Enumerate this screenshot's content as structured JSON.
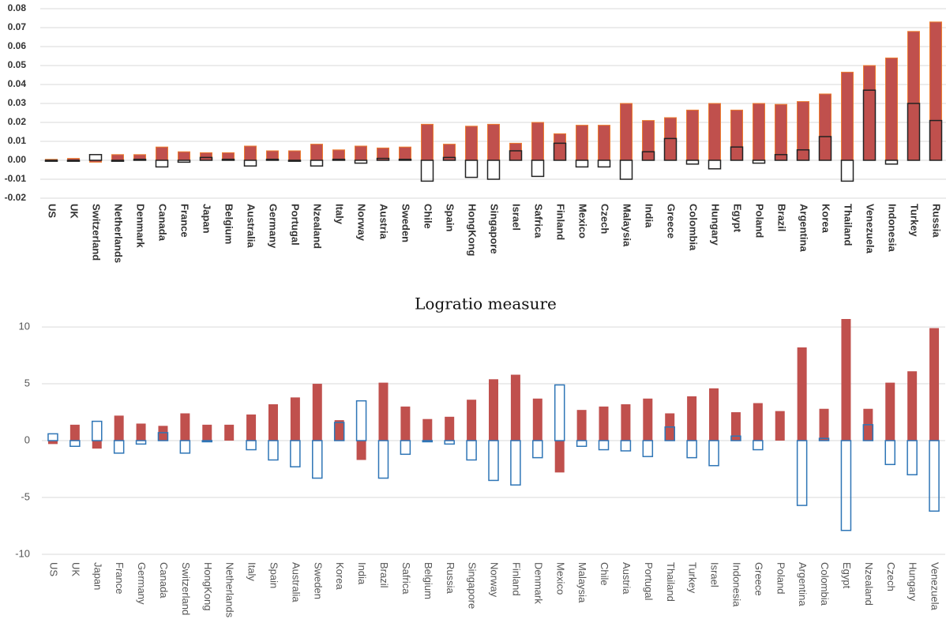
{
  "chart_data": [
    {
      "type": "bar",
      "categories": [
        "US",
        "UK",
        "Switzerland",
        "Netherlands",
        "Denmark",
        "Canada",
        "France",
        "Japan",
        "Belgium",
        "Australia",
        "Germany",
        "Portugal",
        "Nzealand",
        "Italy",
        "Norway",
        "Austria",
        "Sweden",
        "Chile",
        "Spain",
        "HongKong",
        "Singapore",
        "Israel",
        "Safrica",
        "Finland",
        "Mexico",
        "Czech",
        "Malaysia",
        "India",
        "Greece",
        "Colombia",
        "Hungary",
        "Egypt",
        "Poland",
        "Brazil",
        "Argentina",
        "Korea",
        "Thailand",
        "Venezuela",
        "Indonesia",
        "Turkey",
        "Russia"
      ],
      "series": [
        {
          "color": "#c0504d",
          "filled": true,
          "values": [
            0.0005,
            0.001,
            -0.001,
            0.003,
            0.003,
            0.007,
            0.0045,
            0.004,
            0.004,
            0.0075,
            0.005,
            0.005,
            0.0085,
            0.0055,
            0.0075,
            0.0065,
            0.007,
            0.019,
            0.0085,
            0.018,
            0.019,
            0.009,
            0.02,
            0.014,
            0.0185,
            0.0185,
            0.03,
            0.021,
            0.0225,
            0.0265,
            0.03,
            0.0265,
            0.03,
            0.0295,
            0.031,
            0.035,
            0.0465,
            0.05,
            0.054,
            0.068,
            0.073
          ]
        },
        {
          "color": "#222222",
          "filled": false,
          "values": [
            -0.0005,
            -0.0005,
            0.003,
            -0.0005,
            0.0005,
            -0.0035,
            -0.001,
            0.0015,
            0.0005,
            -0.003,
            0.0005,
            -0.0005,
            -0.003,
            0.0005,
            -0.0015,
            0.001,
            0.0005,
            -0.011,
            0.0015,
            -0.009,
            -0.01,
            0.005,
            -0.0085,
            0.009,
            -0.0035,
            -0.0035,
            -0.01,
            0.0045,
            0.0115,
            -0.002,
            -0.0045,
            0.007,
            -0.0015,
            0.003,
            0.0055,
            0.0125,
            -0.011,
            0.037,
            -0.002,
            0.03,
            0.021
          ]
        }
      ],
      "ylim": [
        -0.02,
        0.08
      ],
      "yticks": [
        -0.02,
        -0.01,
        {
          "value": 0,
          "label": "0.00"
        },
        0.01,
        0.02,
        0.03,
        0.04,
        0.05,
        0.06,
        0.07,
        0.08
      ],
      "grid": true
    },
    {
      "type": "bar",
      "title": "Logratio measure",
      "categories": [
        "US",
        "UK",
        "Japan",
        "France",
        "Germany",
        "Canada",
        "Switzerland",
        "HongKong",
        "Netherlands",
        "Italy",
        "Spain",
        "Australia",
        "Sweden",
        "Korea",
        "India",
        "Brazil",
        "Safrica",
        "Belgium",
        "Russia",
        "Singapore",
        "Norway",
        "Finland",
        "Denmark",
        "Mexico",
        "Malaysia",
        "Chile",
        "Austria",
        "Portugal",
        "Thailand",
        "Turkey",
        "Israel",
        "Indonesia",
        "Greece",
        "Poland",
        "Argentina",
        "Colombia",
        "Egypt",
        "Nzealand",
        "Czech",
        "Hungary",
        "Venezuela"
      ],
      "series": [
        {
          "color": "#c0504d",
          "filled": true,
          "values": [
            -0.3,
            1.4,
            -0.7,
            2.2,
            1.5,
            1.3,
            2.4,
            1.4,
            1.4,
            2.3,
            3.2,
            3.8,
            5.0,
            1.8,
            -1.7,
            5.1,
            3.0,
            1.9,
            2.1,
            3.6,
            5.4,
            5.8,
            3.7,
            -2.8,
            2.7,
            3.0,
            3.2,
            3.7,
            2.4,
            3.9,
            4.6,
            2.5,
            3.3,
            2.6,
            8.2,
            2.8,
            10.7,
            2.8,
            5.1,
            6.1,
            9.9
          ]
        },
        {
          "color": "#2e75b6",
          "filled": false,
          "values": [
            0.6,
            -0.5,
            1.7,
            -1.1,
            -0.3,
            0.7,
            -1.1,
            -0.1,
            0,
            -0.8,
            -1.7,
            -2.3,
            -3.3,
            1.6,
            3.5,
            -3.3,
            -1.2,
            -0.1,
            -0.3,
            -1.7,
            -3.5,
            -3.9,
            -1.5,
            4.9,
            -0.5,
            -0.8,
            -0.9,
            -1.4,
            1.2,
            -1.5,
            -2.2,
            0.4,
            -0.8,
            0,
            -5.7,
            0.2,
            -7.9,
            1.4,
            -2.1,
            -3.0,
            -6.2
          ]
        }
      ],
      "ylim": [
        -10,
        10.7
      ],
      "yticks": [
        -10,
        -5,
        0,
        5,
        10
      ],
      "grid": true
    }
  ]
}
